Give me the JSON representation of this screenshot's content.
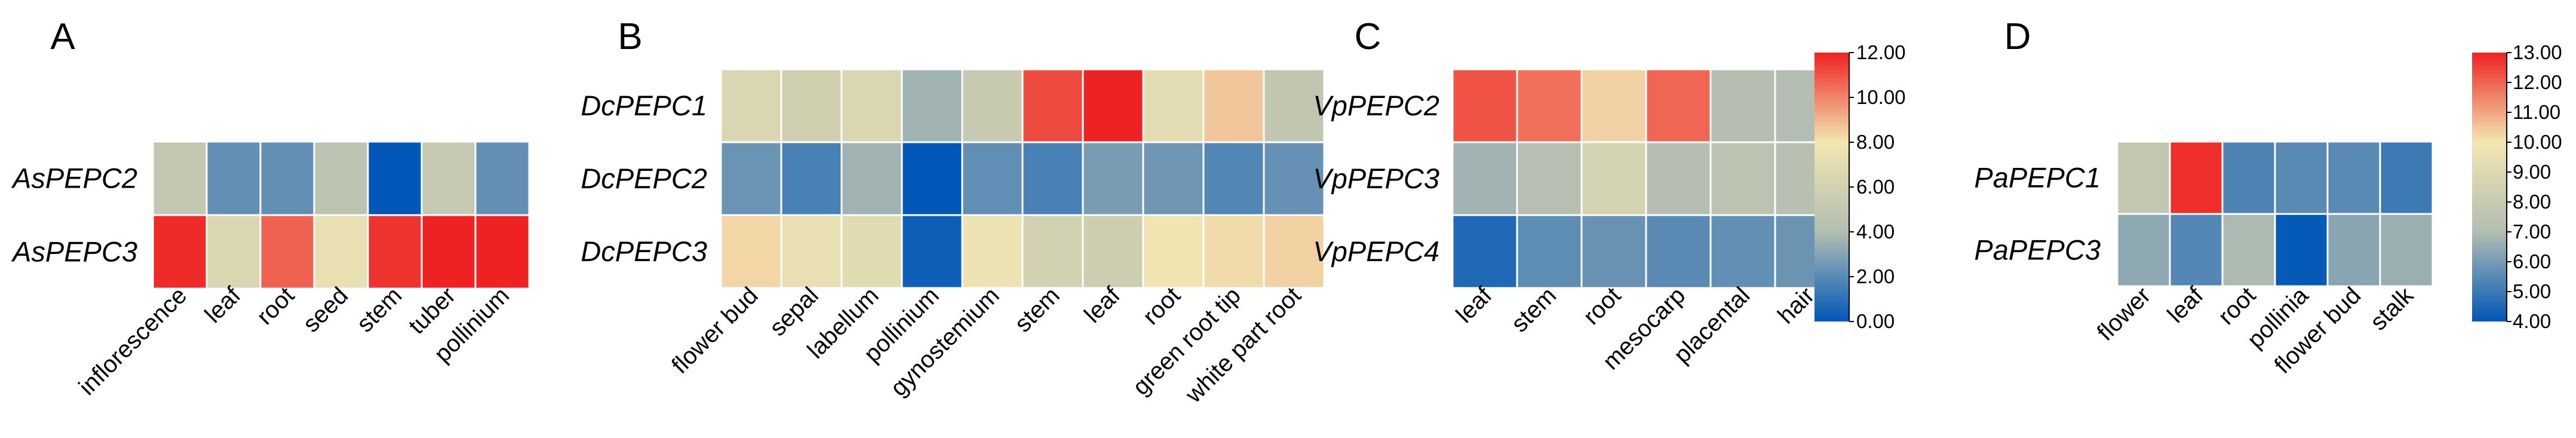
{
  "chart_data": [
    {
      "type": "heatmap",
      "panel_label": "A",
      "rows": [
        "AsPEPC2",
        "AsPEPC3"
      ],
      "columns": [
        "inflorescence",
        "leaf",
        "root",
        "seed",
        "stem",
        "tuber",
        "pollinium"
      ],
      "values": [
        [
          7.5,
          6.0,
          6.0,
          7.3,
          4.8,
          7.6,
          6.0
        ],
        [
          11.2,
          8.3,
          10.6,
          8.8,
          11.1,
          11.3,
          11.3
        ]
      ],
      "colorbar": null
    },
    {
      "type": "heatmap",
      "panel_label": "B",
      "rows": [
        "DcPEPC1",
        "DcPEPC2",
        "DcPEPC3"
      ],
      "columns": [
        "flower bud",
        "sepal",
        "labellum",
        "pollinium",
        "gynostemium",
        "stem",
        "leaf",
        "root",
        "green root tip",
        "white part root"
      ],
      "values": [
        [
          6.3,
          5.7,
          6.3,
          3.6,
          5.2,
          10.6,
          11.4,
          6.8,
          8.3,
          4.8
        ],
        [
          2.5,
          1.8,
          3.6,
          0.3,
          2.3,
          1.8,
          2.8,
          2.6,
          2.0,
          2.4
        ],
        [
          8.0,
          7.1,
          6.7,
          0.6,
          7.4,
          5.8,
          5.5,
          7.6,
          7.9,
          8.1
        ]
      ],
      "colorbar": null
    },
    {
      "type": "heatmap",
      "panel_label": "C",
      "rows": [
        "VpPEPC2",
        "VpPEPC3",
        "VpPEPC4"
      ],
      "columns": [
        "leaf",
        "stem",
        "root",
        "mesocarp",
        "placental",
        "hair"
      ],
      "values": [
        [
          11.0,
          10.4,
          8.4,
          10.6,
          4.1,
          4.0
        ],
        [
          3.6,
          4.2,
          6.1,
          4.1,
          4.6,
          4.3
        ],
        [
          0.7,
          2.1,
          2.3,
          2.0,
          2.2,
          2.4
        ]
      ],
      "colorbar": {
        "min": 0,
        "max": 12,
        "tick_values": [
          0,
          2,
          4,
          6,
          8,
          10,
          12
        ],
        "tick_labels": [
          "0.00",
          "2.00",
          "4.00",
          "6.00",
          "8.00",
          "10.00",
          "12.00"
        ],
        "colors": [
          "#0057b7",
          "#b3bdb1",
          "#f2e6b2",
          "#ee2222"
        ]
      }
    },
    {
      "type": "heatmap",
      "panel_label": "D",
      "rows": [
        "PaPEPC1",
        "PaPEPC3"
      ],
      "columns": [
        "flower",
        "leaf",
        "root",
        "pollinia",
        "flower bud",
        "stalk"
      ],
      "values": [
        [
          7.7,
          12.8,
          5.3,
          5.5,
          5.5,
          5.0
        ],
        [
          6.4,
          5.4,
          6.9,
          4.1,
          6.3,
          6.6
        ]
      ],
      "colorbar": {
        "min": 4,
        "max": 13,
        "tick_values": [
          4,
          5,
          6,
          7,
          8,
          9,
          10,
          11,
          12,
          13
        ],
        "tick_labels": [
          "4.00",
          "5.00",
          "6.00",
          "7.00",
          "8.00",
          "9.00",
          "10.00",
          "11.00",
          "12.00",
          "13.00"
        ],
        "colors": [
          "#0057b7",
          "#b3bdb1",
          "#f2e6b2",
          "#ee2222"
        ]
      }
    }
  ]
}
